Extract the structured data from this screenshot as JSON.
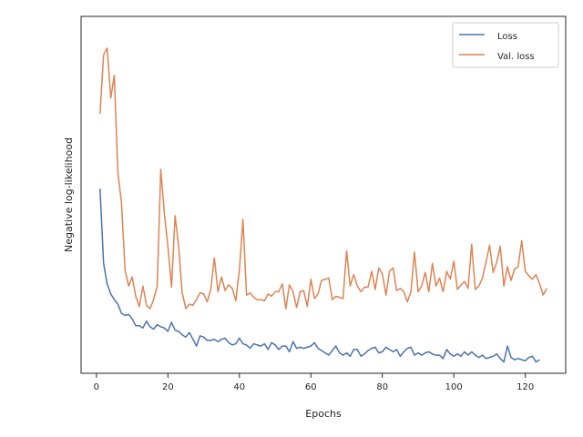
{
  "chart_data": {
    "type": "line",
    "title": "",
    "xlabel": "Epochs",
    "ylabel": "Negative log-likelihood",
    "x_ticks": [
      0,
      20,
      40,
      60,
      80,
      100,
      120
    ],
    "xlim": [
      -4.3,
      131.3
    ],
    "y_ticks_shown": false,
    "ylim": [
      0.15,
      3.3
    ],
    "grid": false,
    "legend": {
      "position": "upper right",
      "entries": [
        "Loss",
        "Val. loss"
      ]
    },
    "series": [
      {
        "name": "Loss",
        "color": "#4c72b0",
        "x_start": 1,
        "values": [
          1.78,
          1.12,
          0.94,
          0.85,
          0.8,
          0.76,
          0.68,
          0.66,
          0.67,
          0.63,
          0.57,
          0.57,
          0.55,
          0.61,
          0.56,
          0.54,
          0.58,
          0.56,
          0.55,
          0.52,
          0.6,
          0.53,
          0.52,
          0.49,
          0.47,
          0.51,
          0.45,
          0.39,
          0.48,
          0.47,
          0.44,
          0.44,
          0.45,
          0.43,
          0.45,
          0.46,
          0.42,
          0.4,
          0.41,
          0.46,
          0.41,
          0.4,
          0.37,
          0.41,
          0.4,
          0.39,
          0.41,
          0.36,
          0.42,
          0.4,
          0.36,
          0.39,
          0.39,
          0.34,
          0.43,
          0.37,
          0.38,
          0.37,
          0.38,
          0.39,
          0.42,
          0.37,
          0.35,
          0.33,
          0.31,
          0.35,
          0.39,
          0.33,
          0.31,
          0.33,
          0.3,
          0.36,
          0.36,
          0.3,
          0.32,
          0.35,
          0.37,
          0.38,
          0.33,
          0.34,
          0.38,
          0.36,
          0.34,
          0.36,
          0.3,
          0.34,
          0.37,
          0.38,
          0.31,
          0.33,
          0.31,
          0.33,
          0.34,
          0.32,
          0.31,
          0.31,
          0.28,
          0.36,
          0.32,
          0.3,
          0.32,
          0.3,
          0.34,
          0.31,
          0.34,
          0.31,
          0.29,
          0.31,
          0.28,
          0.29,
          0.3,
          0.32,
          0.28,
          0.25,
          0.39,
          0.29,
          0.27,
          0.28,
          0.27,
          0.26,
          0.29,
          0.3,
          0.25,
          0.27
        ]
      },
      {
        "name": "Val. loss",
        "color": "#dd8452",
        "x_start": 1,
        "values": [
          2.44,
          2.96,
          3.02,
          2.58,
          2.78,
          1.92,
          1.66,
          1.06,
          0.92,
          1.0,
          0.83,
          0.74,
          0.92,
          0.75,
          0.72,
          0.8,
          0.92,
          1.95,
          1.56,
          1.27,
          0.91,
          1.54,
          1.27,
          0.86,
          0.72,
          0.76,
          0.75,
          0.8,
          0.86,
          0.85,
          0.78,
          0.89,
          1.17,
          0.87,
          1.0,
          0.88,
          0.93,
          0.9,
          0.79,
          1.06,
          1.51,
          0.84,
          0.86,
          0.82,
          0.8,
          0.8,
          0.79,
          0.85,
          0.83,
          0.87,
          0.87,
          0.94,
          0.72,
          0.93,
          0.87,
          0.73,
          0.87,
          0.88,
          0.74,
          0.98,
          0.81,
          0.85,
          0.97,
          0.98,
          0.99,
          0.8,
          0.83,
          0.82,
          0.81,
          1.23,
          0.92,
          1.02,
          0.92,
          0.87,
          0.91,
          0.91,
          1.05,
          0.89,
          1.08,
          1.03,
          0.84,
          1.05,
          1.08,
          0.88,
          0.9,
          0.87,
          0.78,
          0.87,
          1.22,
          0.87,
          0.92,
          1.04,
          0.87,
          1.12,
          0.92,
          0.99,
          0.87,
          1.05,
          0.98,
          1.14,
          0.89,
          0.93,
          0.96,
          0.9,
          1.29,
          0.89,
          0.92,
          0.99,
          1.13,
          1.28,
          1.04,
          1.13,
          1.27,
          0.92,
          1.09,
          0.97,
          1.07,
          1.09,
          1.32,
          1.05,
          1.01,
          0.98,
          1.02,
          0.94,
          0.84,
          0.9
        ]
      }
    ]
  }
}
